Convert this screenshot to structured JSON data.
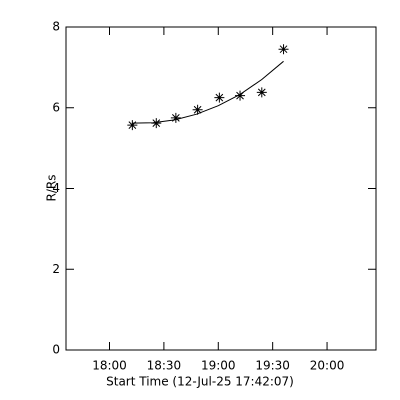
{
  "chart_data": {
    "type": "scatter",
    "x_label": "Start Time (12-Jul-25 17:42:07)",
    "y_label": "R/Rs",
    "xlim": [
      17.6,
      20.45
    ],
    "ylim": [
      0,
      8
    ],
    "xticks": [
      {
        "value": 18.0,
        "label": "18:00"
      },
      {
        "value": 18.5,
        "label": "18:30"
      },
      {
        "value": 19.0,
        "label": "19:00"
      },
      {
        "value": 19.5,
        "label": "19:30"
      },
      {
        "value": 20.0,
        "label": "20:00"
      }
    ],
    "yticks": [
      0,
      2,
      4,
      6,
      8
    ],
    "series": [
      {
        "kind": "points",
        "color": "#000000",
        "x": [
          18.21,
          18.43,
          18.61,
          18.81,
          19.01,
          19.2,
          19.4,
          19.6
        ],
        "values": [
          5.57,
          5.62,
          5.75,
          5.95,
          6.25,
          6.3,
          6.38,
          7.45
        ]
      },
      {
        "kind": "line",
        "color": "#000000",
        "x": [
          18.21,
          18.4,
          18.6,
          18.8,
          19.0,
          19.2,
          19.4,
          19.6
        ],
        "values": [
          5.62,
          5.63,
          5.7,
          5.84,
          6.05,
          6.33,
          6.7,
          7.15
        ]
      }
    ]
  }
}
